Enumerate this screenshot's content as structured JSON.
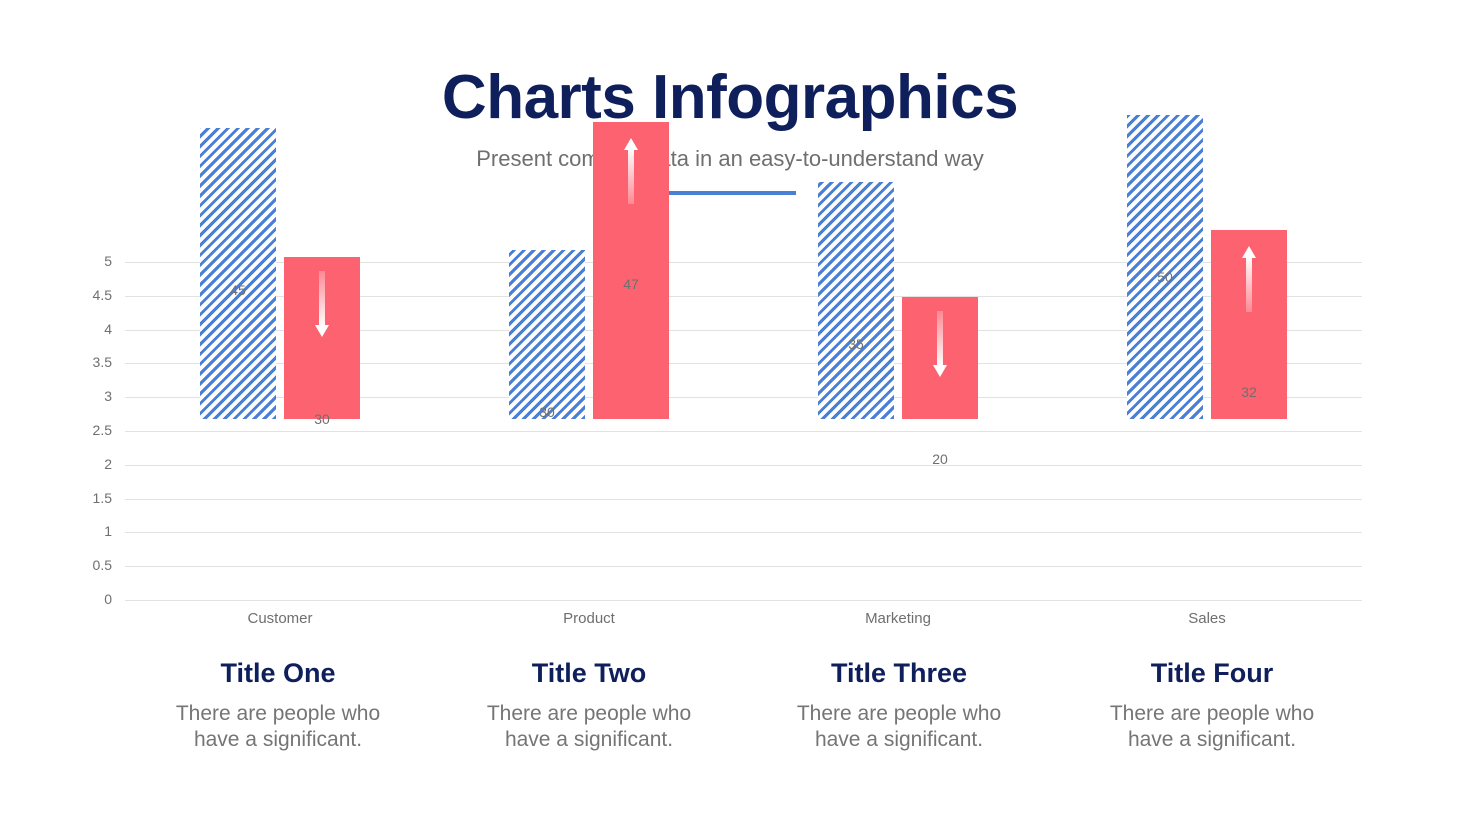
{
  "header": {
    "title": "Charts Infographics",
    "subtitle": "Present complex data in an easy-to-understand way"
  },
  "colors": {
    "title": "#0e1f5b",
    "accent_underline": "#4a7fd6",
    "series_blue": "#4a7fd6",
    "series_red": "#fd6270",
    "text_gray": "#6f6f6f",
    "grid": "#e2e2e2"
  },
  "chart_data": {
    "type": "bar",
    "title": "",
    "xlabel": "",
    "ylabel": "",
    "ylim": [
      0,
      5
    ],
    "yticks": [
      "0",
      "0.5",
      "1",
      "1.5",
      "2",
      "2.5",
      "3",
      "3.5",
      "4",
      "4.5",
      "5"
    ],
    "grid": true,
    "legend": "none",
    "categories": [
      "Customer",
      "Product",
      "Marketing",
      "Sales"
    ],
    "series": [
      {
        "name": "Series 1 (blue striped)",
        "values": [
          4.3,
          2.5,
          3.5,
          4.5
        ],
        "data_labels": [
          "45",
          "30",
          "35",
          "50"
        ]
      },
      {
        "name": "Series 2 (red solid)",
        "values": [
          2.4,
          4.4,
          1.8,
          2.8
        ],
        "data_labels": [
          "30",
          "47",
          "20",
          "32"
        ],
        "arrows": [
          "down",
          "up",
          "down",
          "up"
        ]
      }
    ]
  },
  "cards": [
    {
      "title": "Title One",
      "line1": "There are people who",
      "line2": "have a significant."
    },
    {
      "title": "Title Two",
      "line1": "There are people who",
      "line2": "have a significant."
    },
    {
      "title": "Title Three",
      "line1": "There are people who",
      "line2": "have a significant."
    },
    {
      "title": "Title Four",
      "line1": "There are people who",
      "line2": "have a significant."
    }
  ]
}
